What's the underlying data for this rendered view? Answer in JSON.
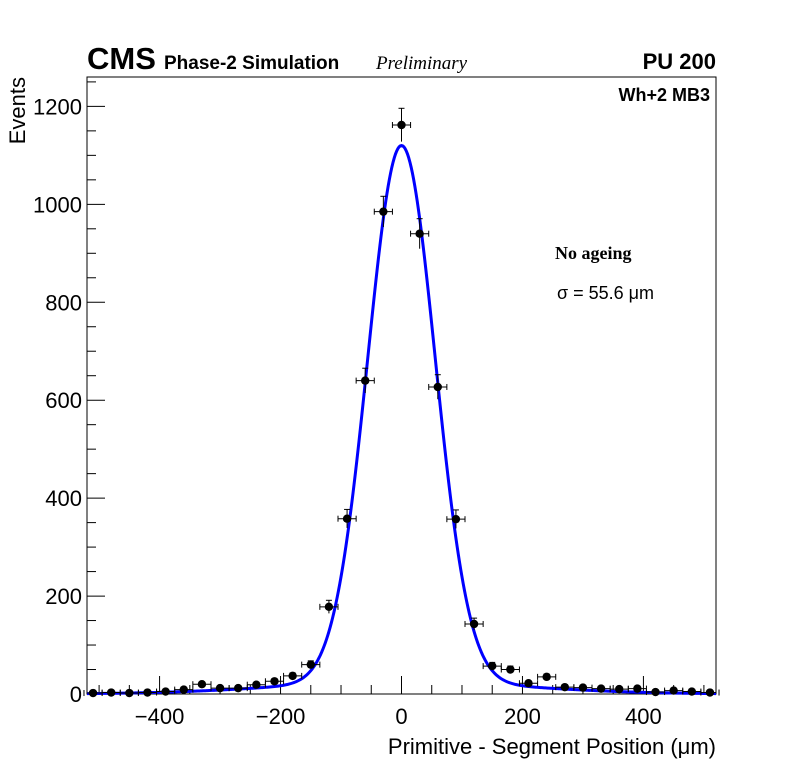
{
  "chart_data": {
    "type": "scatter",
    "header": {
      "experiment": "CMS",
      "subtitle": "Phase-2 Simulation",
      "status": "Preliminary",
      "pileup": "PU 200"
    },
    "station_label": "Wh+2 MB3",
    "legend": {
      "title": "No ageing",
      "sigma": "σ = 55.6 μm"
    },
    "xlabel": "Primitive - Segment Position (μm)",
    "ylabel": "Events",
    "xlim": [
      -520,
      520
    ],
    "ylim": [
      0,
      1260
    ],
    "xticks": [
      -400,
      -200,
      0,
      200,
      400
    ],
    "xtick_labels": [
      "−400",
      "−200",
      "0",
      "200",
      "400"
    ],
    "yticks": [
      0,
      200,
      400,
      600,
      800,
      1000,
      1200
    ],
    "ytick_labels": [
      "0",
      "200",
      "400",
      "600",
      "800",
      "1000",
      "1200"
    ],
    "bin_halfwidth": 15,
    "series": [
      {
        "name": "Simulation",
        "x": [
          -510,
          -480,
          -450,
          -420,
          -390,
          -360,
          -330,
          -300,
          -270,
          -240,
          -210,
          -180,
          -150,
          -120,
          -90,
          -60,
          -30,
          0,
          30,
          60,
          90,
          120,
          150,
          180,
          210,
          240,
          270,
          300,
          330,
          360,
          390,
          420,
          450,
          480,
          510
        ],
        "y": [
          2,
          3,
          2,
          3,
          5,
          9,
          20,
          12,
          12,
          19,
          26,
          37,
          60,
          178,
          358,
          640,
          985,
          1162,
          940,
          627,
          357,
          143,
          57,
          50,
          22,
          35,
          14,
          13,
          11,
          10,
          11,
          4,
          7,
          5,
          3
        ]
      }
    ],
    "fit": {
      "name": "Gaussian fit",
      "color": "#0000ff",
      "core_amplitude": 1095,
      "core_mean": 0,
      "core_sigma": 55.6,
      "tail_amplitude": 25,
      "tail_sigma": 200
    }
  }
}
